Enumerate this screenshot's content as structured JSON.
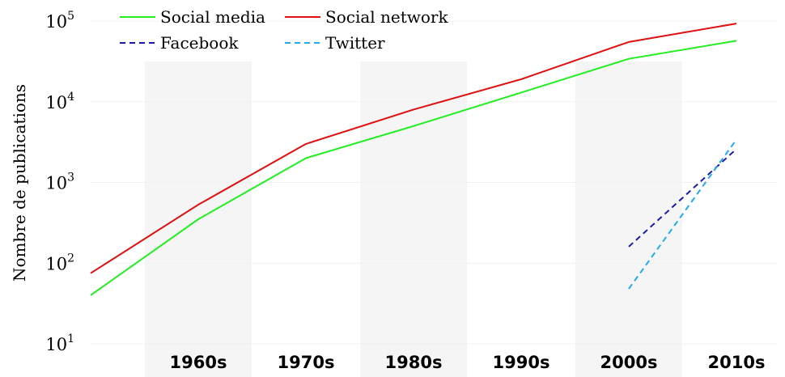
{
  "chart_data": {
    "type": "line",
    "title": "",
    "xlabel": "",
    "ylabel": "Nombre de publications",
    "y_scale": "log",
    "ylim": [
      10,
      100000
    ],
    "y_ticks": [
      {
        "value": 10,
        "base": "10",
        "exp": "1"
      },
      {
        "value": 100,
        "base": "10",
        "exp": "2"
      },
      {
        "value": 1000,
        "base": "10",
        "exp": "3"
      },
      {
        "value": 10000,
        "base": "10",
        "exp": "4"
      },
      {
        "value": 100000,
        "base": "10",
        "exp": "5"
      }
    ],
    "x_tick_labels": [
      "1960s",
      "1970s",
      "1980s",
      "1990s",
      "2000s",
      "2010s"
    ],
    "shaded_bands": [
      "1960s",
      "1980s",
      "2000s"
    ],
    "grid": true,
    "legend_position": "top-left",
    "series": [
      {
        "name": "Social media",
        "color": "#22ee22",
        "dash": "solid",
        "points": [
          {
            "x": "1950s",
            "y": 40
          },
          {
            "x": "1960s",
            "y": 350
          },
          {
            "x": "1970s",
            "y": 2000
          },
          {
            "x": "1980s",
            "y": 5000
          },
          {
            "x": "1990s",
            "y": 13000
          },
          {
            "x": "2000s",
            "y": 34000
          },
          {
            "x": "2010s",
            "y": 57000
          }
        ]
      },
      {
        "name": "Social network",
        "color": "#e01010",
        "dash": "solid",
        "points": [
          {
            "x": "1950s",
            "y": 75
          },
          {
            "x": "1960s",
            "y": 530
          },
          {
            "x": "1970s",
            "y": 3000
          },
          {
            "x": "1980s",
            "y": 8000
          },
          {
            "x": "1990s",
            "y": 19000
          },
          {
            "x": "2000s",
            "y": 55000
          },
          {
            "x": "2010s",
            "y": 93000
          }
        ]
      },
      {
        "name": "Facebook",
        "color": "#1a1aaa",
        "dash": "dashed",
        "points": [
          {
            "x": "2000s",
            "y": 160
          },
          {
            "x": "2010s",
            "y": 2600
          }
        ]
      },
      {
        "name": "Twitter",
        "color": "#22aaee",
        "dash": "dashed",
        "points": [
          {
            "x": "2000s",
            "y": 48
          },
          {
            "x": "2010s",
            "y": 3400
          }
        ]
      }
    ]
  }
}
